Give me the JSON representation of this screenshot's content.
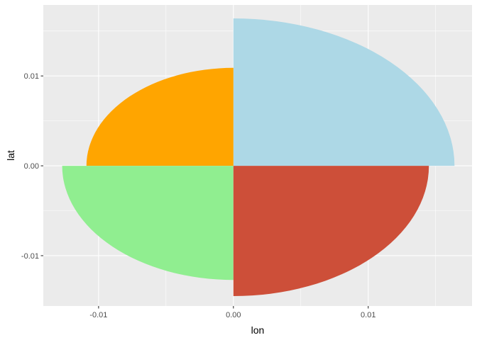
{
  "chart_data": {
    "type": "area",
    "xlabel": "lon",
    "ylabel": "lat",
    "xlim": [
      -0.0141,
      0.0177
    ],
    "ylim": [
      -0.0156,
      0.0179
    ],
    "x_ticks": [
      -0.01,
      -0.005,
      0.0,
      0.005,
      0.01,
      0.015
    ],
    "x_tick_labels": [
      "-0.01",
      "",
      "0.00",
      "",
      "0.01",
      ""
    ],
    "y_ticks": [
      -0.01,
      -0.005,
      0.0,
      0.005,
      0.01,
      0.015
    ],
    "y_tick_labels": [
      "-0.01",
      "",
      "0.00",
      "",
      "0.01",
      ""
    ],
    "grid": true,
    "legend": "none",
    "background": "#ebebeb",
    "sectors": [
      {
        "quadrant": "top-right",
        "color": "#add8e6",
        "rx": 0.0164,
        "ry": 0.0164
      },
      {
        "quadrant": "top-left",
        "color": "#ffa500",
        "rx": 0.0109,
        "ry": 0.0109
      },
      {
        "quadrant": "bottom-left",
        "color": "#90ee90",
        "rx": 0.0127,
        "ry": 0.0127
      },
      {
        "quadrant": "bottom-right",
        "color": "#cd4f39",
        "rx": 0.0145,
        "ry": 0.0145
      }
    ]
  }
}
